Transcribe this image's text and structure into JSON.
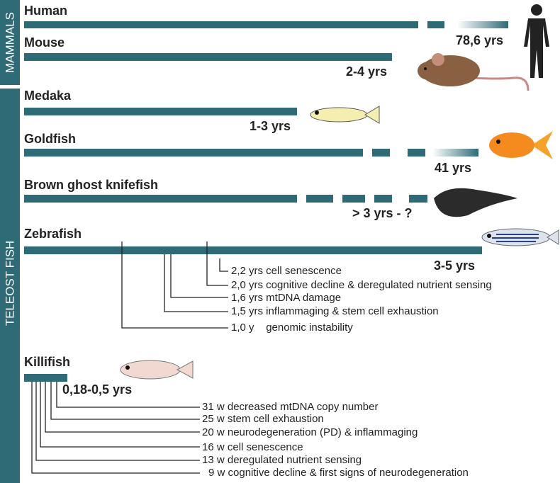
{
  "groups": [
    {
      "label": "MAMMALS"
    },
    {
      "label": "TELEOST FISH"
    }
  ],
  "species": [
    {
      "name": "Human",
      "lifespan": "78,6 yrs"
    },
    {
      "name": "Mouse",
      "lifespan": "2-4 yrs"
    },
    {
      "name": "Medaka",
      "lifespan": "1-3 yrs"
    },
    {
      "name": "Goldfish",
      "lifespan": "41 yrs"
    },
    {
      "name": "Brown ghost knifefish",
      "lifespan": "> 3 yrs - ?"
    },
    {
      "name": "Zebrafish",
      "lifespan": "3-5 yrs"
    },
    {
      "name": "Killifish",
      "lifespan": "0,18-0,5 yrs"
    }
  ],
  "zebrafish_events": [
    "2,2 yrs cell senescence",
    "2,0 yrs cognitive decline & deregulated nutrient sensing",
    "1,6 yrs mtDNA damage",
    "1,5 yrs inflammaging & stem cell exhaustion",
    "1,0 y    genomic instability"
  ],
  "killifish_events": [
    "31 w decreased mtDNA copy number",
    "25 w stem cell exhaustion",
    "20 w neurodegeneration (PD) & inflammaging",
    "16 w cell senescence",
    "13 w deregulated nutrient sensing",
    "9 w cognitive decline & first signs of neurodegeneration"
  ]
}
